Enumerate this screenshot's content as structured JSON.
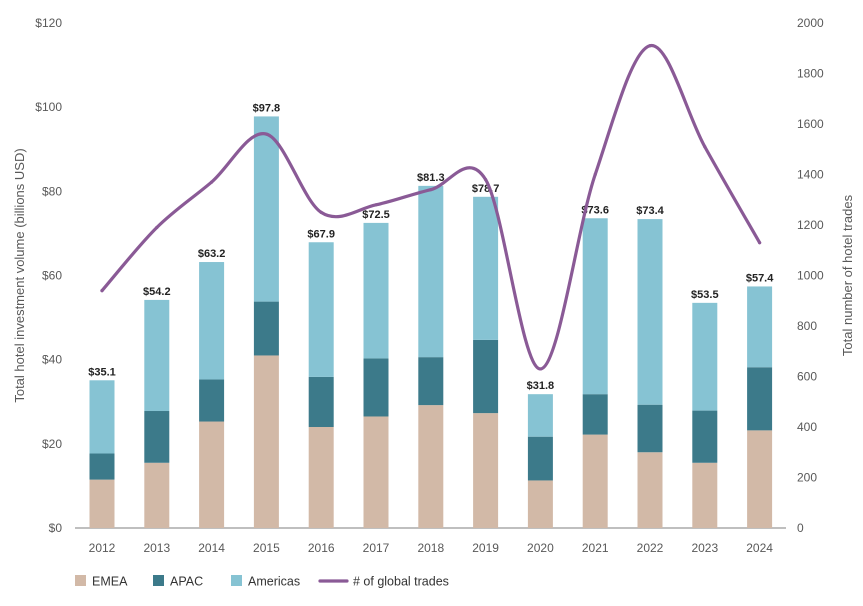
{
  "chart_data": {
    "type": "bar",
    "stacked": true,
    "categories": [
      "2012",
      "2013",
      "2014",
      "2015",
      "2016",
      "2017",
      "2018",
      "2019",
      "2020",
      "2021",
      "2022",
      "2023",
      "2024"
    ],
    "series": [
      {
        "name": "EMEA",
        "color": "#d2b9a7",
        "values": [
          11.5,
          15.5,
          25.3,
          41.0,
          24.0,
          26.5,
          29.2,
          27.3,
          11.3,
          22.2,
          18.0,
          15.5,
          23.2
        ]
      },
      {
        "name": "APAC",
        "color": "#3c7a8a",
        "values": [
          6.2,
          12.3,
          10.0,
          12.8,
          11.9,
          13.8,
          11.4,
          17.4,
          10.4,
          9.6,
          11.3,
          12.4,
          15.0
        ]
      },
      {
        "name": "Americas",
        "color": "#86c3d3",
        "values": [
          17.4,
          26.4,
          27.9,
          44.0,
          32.0,
          32.2,
          40.7,
          34.0,
          10.1,
          41.8,
          44.1,
          25.6,
          19.2
        ]
      }
    ],
    "totals": [
      35.1,
      54.2,
      63.2,
      97.8,
      67.9,
      72.5,
      81.3,
      78.7,
      31.8,
      73.6,
      73.4,
      53.5,
      57.4
    ],
    "total_labels": [
      "$35.1",
      "$54.2",
      "$63.2",
      "$97.8",
      "$67.9",
      "$72.5",
      "$81.3",
      "$78.7",
      "$31.8",
      "$73.6",
      "$73.4",
      "$53.5",
      "$57.4"
    ],
    "line": {
      "name": "# of global trades",
      "color": "#8a5a96",
      "values": [
        940,
        1190,
        1370,
        1560,
        1250,
        1280,
        1340,
        1380,
        630,
        1400,
        1910,
        1510,
        1130
      ]
    },
    "ylabel": "Total hotel investment volume (billions USD)",
    "y2label": "Total number of hotel trades",
    "ylim": [
      0,
      120
    ],
    "y2lim": [
      0,
      2000
    ],
    "yticks": [
      "$0",
      "$20",
      "$40",
      "$60",
      "$80",
      "$100",
      "$120"
    ],
    "y2ticks": [
      "0",
      "200",
      "400",
      "600",
      "800",
      "1000",
      "1200",
      "1400",
      "1600",
      "1800",
      "2000"
    ],
    "grid": false,
    "legend": "bottom-left"
  }
}
